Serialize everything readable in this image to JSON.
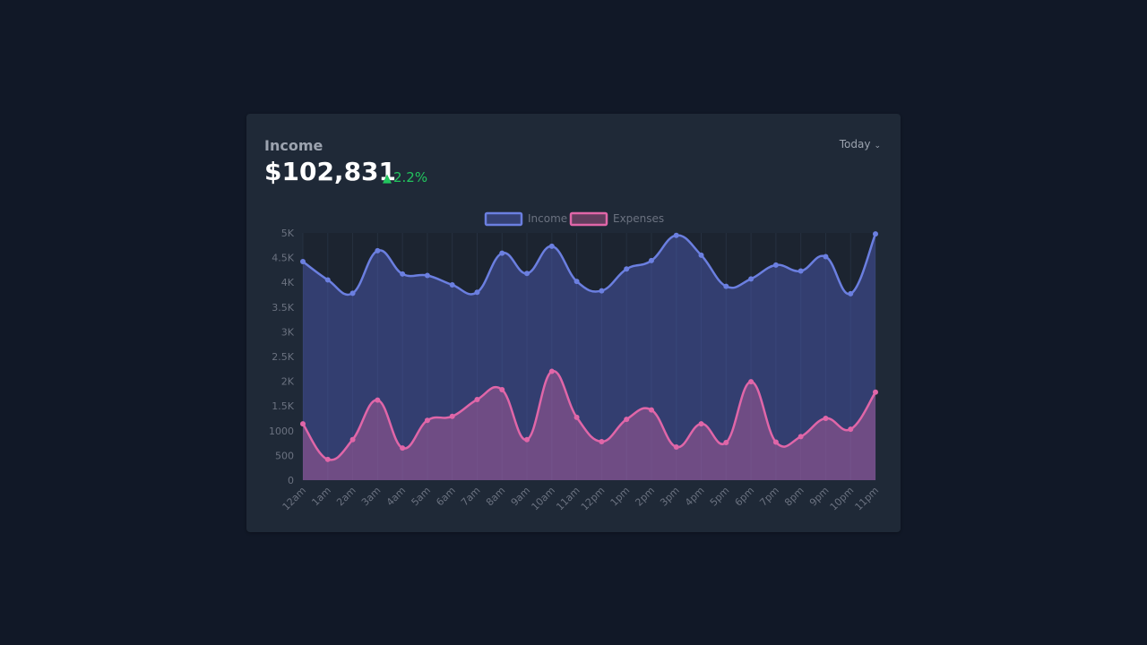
{
  "card": {
    "title": "Income",
    "amount": "$102,831",
    "change": "2.2%",
    "change_icon": "triangle-up-icon",
    "period": "Today",
    "period_icon": "chevron-down-icon"
  },
  "colors": {
    "background": "#111827",
    "card": "#1f2937",
    "income": "#6b7fe0",
    "expenses": "#e066a8",
    "positive": "#22c55e"
  },
  "chart_data": {
    "type": "area",
    "categories": [
      "12am",
      "1am",
      "2am",
      "3am",
      "4am",
      "5am",
      "6am",
      "7am",
      "8am",
      "9am",
      "10am",
      "11am",
      "12pm",
      "1pm",
      "2pm",
      "3pm",
      "4pm",
      "5pm",
      "6pm",
      "7pm",
      "8pm",
      "9pm",
      "10pm",
      "11pm"
    ],
    "series": [
      {
        "name": "Income",
        "values": [
          4420,
          4050,
          3780,
          4640,
          4170,
          4140,
          3950,
          3800,
          4590,
          4180,
          4730,
          4020,
          3830,
          4270,
          4440,
          4950,
          4550,
          3920,
          4070,
          4350,
          4230,
          4520,
          3770,
          4980
        ]
      },
      {
        "name": "Expenses",
        "values": [
          1140,
          420,
          820,
          1620,
          650,
          1210,
          1290,
          1630,
          1830,
          820,
          2200,
          1270,
          780,
          1230,
          1420,
          670,
          1140,
          760,
          1990,
          770,
          880,
          1250,
          1030,
          1780
        ]
      }
    ],
    "ylim": [
      0,
      5000
    ],
    "yticks": [
      0,
      500,
      1000,
      1500,
      2000,
      2500,
      3000,
      3500,
      4000,
      4500,
      5000
    ],
    "ytick_labels": [
      "0",
      "500",
      "1000",
      "1.5K",
      "2K",
      "2.5K",
      "3K",
      "3.5K",
      "4K",
      "4.5K",
      "5K"
    ],
    "legend": "top-center",
    "grid": "vertical"
  }
}
